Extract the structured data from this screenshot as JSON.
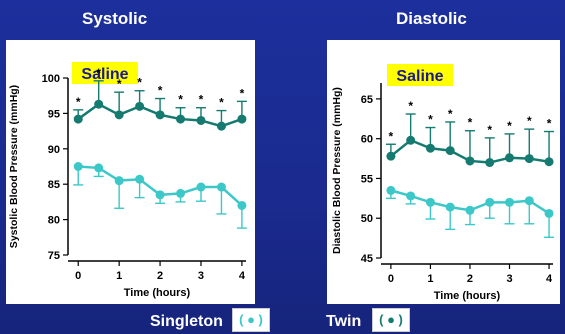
{
  "titles": {
    "left": "Systolic",
    "right": "Diastolic"
  },
  "legend": {
    "singleton_label": "Singleton",
    "twin_label": "Twin",
    "singleton_color": "#3cc8c8",
    "twin_color": "#157a70",
    "paren_open": "(",
    "paren_close": ")",
    "dot": "●"
  },
  "chart_data": [
    {
      "type": "line",
      "title": "Systolic",
      "tag": "Saline",
      "xlabel": "Time (hours)",
      "ylabel": "Systolic Blood Pressure (mmHg)",
      "xlim": [
        -0.25,
        4.1
      ],
      "ylim": [
        75,
        100
      ],
      "xticks": [
        0,
        1,
        2,
        3,
        4
      ],
      "yticks": [
        75,
        80,
        85,
        90,
        95,
        100
      ],
      "x": [
        0,
        0.5,
        1,
        1.5,
        2,
        2.5,
        3,
        3.5,
        4
      ],
      "series": [
        {
          "name": "Twin",
          "color": "#157a70",
          "values": [
            94.2,
            96.3,
            94.8,
            96.0,
            94.8,
            94.2,
            94.0,
            93.2,
            94.2
          ],
          "err": [
            1.3,
            3.3,
            3.2,
            2.2,
            2.3,
            1.6,
            1.8,
            2.2,
            2.5
          ],
          "sig": [
            true,
            true,
            true,
            true,
            true,
            true,
            true,
            true,
            true
          ]
        },
        {
          "name": "Singleton",
          "color": "#3cc8c8",
          "values": [
            87.5,
            87.3,
            85.5,
            85.7,
            83.5,
            83.7,
            84.6,
            84.6,
            82.0
          ],
          "err": [
            2.6,
            1.2,
            3.9,
            2.6,
            1.2,
            1.2,
            2.0,
            3.8,
            3.2
          ],
          "sig": [
            false,
            false,
            false,
            false,
            false,
            false,
            false,
            false,
            false
          ]
        }
      ]
    },
    {
      "type": "line",
      "title": "Diastolic",
      "tag": "Saline",
      "xlabel": "Time (hours)",
      "ylabel": "Diastolic Blood Pressure (mmHg)",
      "xlim": [
        -0.25,
        4.1
      ],
      "ylim": [
        45,
        67
      ],
      "xticks": [
        0,
        1,
        2,
        3,
        4
      ],
      "yticks": [
        45,
        50,
        55,
        60,
        65
      ],
      "x": [
        0,
        0.5,
        1,
        1.5,
        2,
        2.5,
        3,
        3.5,
        4
      ],
      "series": [
        {
          "name": "Twin",
          "color": "#157a70",
          "values": [
            57.8,
            59.8,
            58.8,
            58.5,
            57.2,
            57.0,
            57.6,
            57.5,
            57.1
          ],
          "err": [
            1.5,
            3.3,
            2.6,
            3.6,
            3.8,
            3.1,
            3.0,
            3.7,
            3.8
          ],
          "sig": [
            true,
            true,
            true,
            true,
            true,
            true,
            true,
            true,
            true
          ]
        },
        {
          "name": "Singleton",
          "color": "#3cc8c8",
          "values": [
            53.5,
            52.8,
            52.0,
            51.4,
            51.0,
            52.0,
            52.0,
            52.2,
            50.6
          ],
          "err": [
            1.0,
            1.0,
            2.1,
            2.8,
            1.8,
            2.0,
            2.7,
            2.9,
            3.0
          ],
          "sig": [
            false,
            false,
            false,
            false,
            false,
            false,
            false,
            false,
            false
          ]
        }
      ]
    }
  ]
}
